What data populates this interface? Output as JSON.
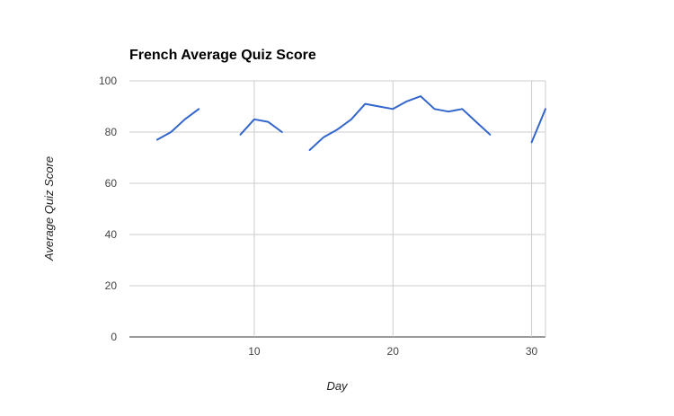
{
  "chart_data": {
    "type": "line",
    "title": "French Average Quiz Score",
    "xlabel": "Day",
    "ylabel": "Average Quiz Score",
    "xlim": [
      1,
      31
    ],
    "ylim": [
      0,
      100
    ],
    "x_ticks": [
      10,
      20,
      30
    ],
    "y_ticks": [
      0,
      20,
      40,
      60,
      80,
      100
    ],
    "grid": true,
    "legend": "none",
    "series": [
      {
        "color": "#3366cc",
        "points": [
          [
            3,
            77
          ],
          [
            4,
            80
          ],
          [
            5,
            85
          ],
          [
            6,
            89
          ],
          [
            7,
            null
          ],
          [
            8,
            null
          ],
          [
            9,
            79
          ],
          [
            10,
            85
          ],
          [
            11,
            84
          ],
          [
            12,
            80
          ],
          [
            13,
            null
          ],
          [
            14,
            73
          ],
          [
            15,
            78
          ],
          [
            16,
            81
          ],
          [
            17,
            85
          ],
          [
            18,
            91
          ],
          [
            19,
            90
          ],
          [
            20,
            89
          ],
          [
            21,
            92
          ],
          [
            22,
            94
          ],
          [
            23,
            89
          ],
          [
            24,
            88
          ],
          [
            25,
            89
          ],
          [
            26,
            84
          ],
          [
            27,
            79
          ],
          [
            28,
            null
          ],
          [
            29,
            null
          ],
          [
            30,
            76
          ],
          [
            31,
            89
          ]
        ]
      }
    ]
  }
}
